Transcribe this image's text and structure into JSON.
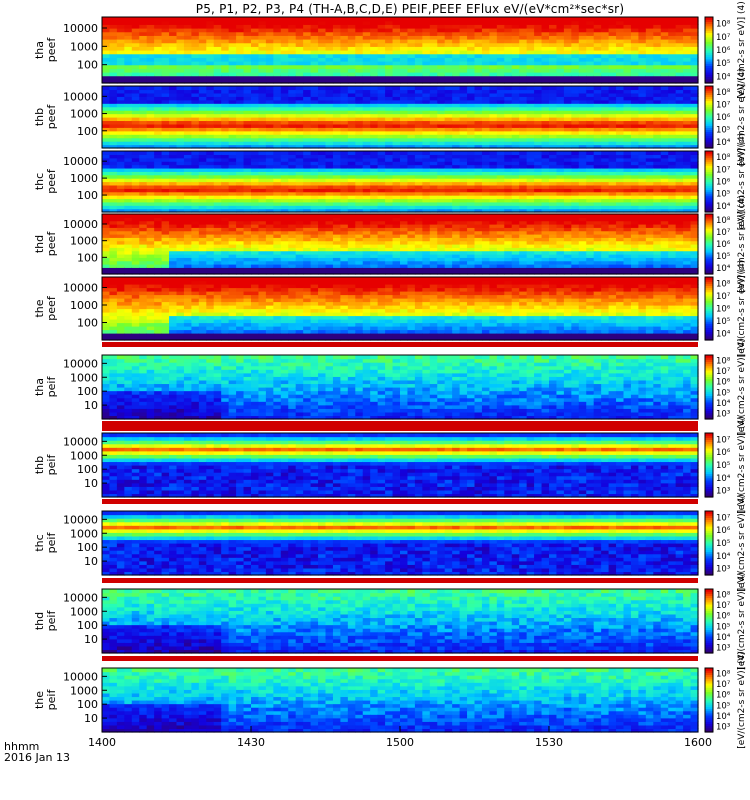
{
  "title": "P5, P1, P2, P3, P4 (TH-A,B,C,D,E) PEIF,PEEF EFlux eV/(eV*cm²*sec*sr)",
  "footer": {
    "hhmm": "hhmm",
    "date": "2016 Jan 13"
  },
  "chart_data": {
    "type": "heatmap",
    "x_ticks": [
      "1400",
      "1430",
      "1500",
      "1530",
      "1600"
    ],
    "x_range": [
      "1400",
      "1600"
    ],
    "colorbar_label": "[eV/(cm2-s sr eV)]",
    "panels": [
      {
        "ylabel": "tha peef",
        "yticks": [
          "100",
          "1000",
          "10000"
        ],
        "cb_ticks": [
          "10⁴",
          "10⁵",
          "10⁶",
          "10⁷",
          "10⁸"
        ],
        "pattern": "elec_a",
        "cb_extra": "[eV/(cm2-s sr eV)] (4)"
      },
      {
        "ylabel": "thb peef",
        "yticks": [
          "100",
          "1000",
          "10000"
        ],
        "cb_ticks": [
          "10⁴",
          "10⁵",
          "10⁶",
          "10⁷",
          "10⁸"
        ],
        "pattern": "elec_bc",
        "cb_extra": "[eV/(cm2-s sr eV)] (4)"
      },
      {
        "ylabel": "thc peef",
        "yticks": [
          "100",
          "1000",
          "10000"
        ],
        "cb_ticks": [
          "10⁴",
          "10⁵",
          "10⁶",
          "10⁷",
          "10⁸"
        ],
        "pattern": "elec_bc",
        "cb_extra": "[eV/(cm2-s sr eV)] (4)"
      },
      {
        "ylabel": "thd peef",
        "yticks": [
          "100",
          "1000",
          "10000"
        ],
        "cb_ticks": [
          "10⁴",
          "10⁵",
          "10⁶",
          "10⁷",
          "10⁸"
        ],
        "pattern": "elec_de",
        "cb_extra": "[eV/(cm2-s sr eV)] (4)"
      },
      {
        "ylabel": "the peef",
        "yticks": [
          "100",
          "1000",
          "10000"
        ],
        "cb_ticks": [
          "10⁴",
          "10⁵",
          "10⁶",
          "10⁷",
          "10⁸"
        ],
        "pattern": "elec_de",
        "cb_extra": "[eV/(cm2-s sr eV)] (4)"
      },
      {
        "ylabel": "tha peif",
        "yticks": [
          "10",
          "100",
          "1000",
          "10000"
        ],
        "cb_ticks": [
          "10³",
          "10⁴",
          "10⁵",
          "10⁶",
          "10⁷",
          "10⁸"
        ],
        "pattern": "ion_a",
        "cb_extra": "[eV/(cm2-s sr eV)] (4)"
      },
      {
        "ylabel": "thb peif",
        "yticks": [
          "10",
          "100",
          "1000",
          "10000"
        ],
        "cb_ticks": [
          "10³",
          "10⁴",
          "10⁵",
          "10⁶",
          "10⁷"
        ],
        "pattern": "ion_bc",
        "cb_extra": "[eV/(cm2-s sr eV)] (4)"
      },
      {
        "ylabel": "thc peif",
        "yticks": [
          "10",
          "100",
          "1000",
          "10000"
        ],
        "cb_ticks": [
          "10³",
          "10⁴",
          "10⁵",
          "10⁶",
          "10⁷"
        ],
        "pattern": "ion_bc",
        "cb_extra": "[eV/(cm2-s sr eV)] (4)"
      },
      {
        "ylabel": "thd peif",
        "yticks": [
          "10",
          "100",
          "1000",
          "10000"
        ],
        "cb_ticks": [
          "10³",
          "10⁴",
          "10⁵",
          "10⁶",
          "10⁷",
          "10⁸"
        ],
        "pattern": "ion_de",
        "cb_extra": "[eV/(cm2-s sr eV)] (4)"
      },
      {
        "ylabel": "the peif",
        "yticks": [
          "10",
          "100",
          "1000",
          "10000"
        ],
        "cb_ticks": [
          "10³",
          "10⁴",
          "10⁵",
          "10⁶",
          "10⁷",
          "10⁸"
        ],
        "pattern": "ion_de",
        "cb_extra": "[eV/(cm2-s sr eV)] (4)"
      }
    ]
  }
}
